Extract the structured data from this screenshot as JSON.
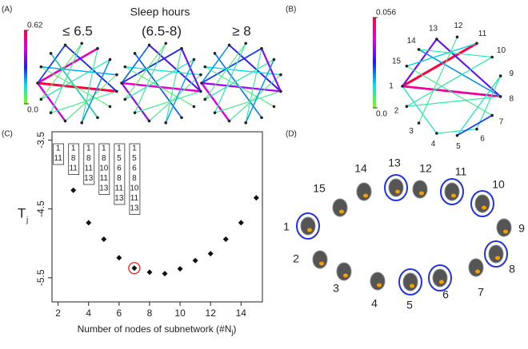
{
  "chart_data": [
    {
      "type": "network",
      "panel_label": "(A)",
      "title": "Sleep hours",
      "clim": [
        0,
        0.62
      ],
      "cticks": [
        {
          "value": 0,
          "label": "0.0"
        },
        0.62
      ],
      "panels": [
        {
          "title": "≤ 6.5",
          "edges": [
            [
              1,
              8,
              0.62
            ],
            [
              1,
              11,
              0.5
            ],
            [
              13,
              8,
              0.3
            ],
            [
              14,
              6,
              0.25
            ],
            [
              15,
              9,
              0.2
            ],
            [
              1,
              4,
              0.45
            ],
            [
              13,
              1,
              0.28
            ],
            [
              12,
              3,
              0.1
            ],
            [
              2,
              10,
              0.12
            ],
            [
              5,
              11,
              0.1
            ],
            [
              4,
              9,
              0.08
            ],
            [
              6,
              14,
              0.1
            ],
            [
              7,
              15,
              0.07
            ],
            [
              3,
              8,
              0.09
            ],
            [
              2,
              12,
              0.06
            ],
            [
              10,
              5,
              0.22
            ]
          ]
        },
        {
          "title": "(6.5-8)",
          "edges": [
            [
              1,
              8,
              0.48
            ],
            [
              1,
              11,
              0.3
            ],
            [
              13,
              8,
              0.35
            ],
            [
              14,
              6,
              0.26
            ],
            [
              15,
              9,
              0.15
            ],
            [
              1,
              4,
              0.4
            ],
            [
              13,
              1,
              0.25
            ],
            [
              12,
              3,
              0.1
            ],
            [
              2,
              10,
              0.12
            ],
            [
              5,
              11,
              0.1
            ],
            [
              4,
              9,
              0.08
            ],
            [
              11,
              8,
              0.38
            ],
            [
              7,
              15,
              0.07
            ],
            [
              3,
              8,
              0.09
            ],
            [
              2,
              12,
              0.06
            ],
            [
              10,
              5,
              0.2
            ]
          ]
        },
        {
          "title": "≥ 8",
          "edges": [
            [
              1,
              8,
              0.42
            ],
            [
              1,
              11,
              0.28
            ],
            [
              13,
              8,
              0.33
            ],
            [
              14,
              6,
              0.24
            ],
            [
              15,
              9,
              0.16
            ],
            [
              1,
              4,
              0.46
            ],
            [
              13,
              1,
              0.22
            ],
            [
              12,
              3,
              0.11
            ],
            [
              2,
              10,
              0.12
            ],
            [
              5,
              11,
              0.1
            ],
            [
              4,
              9,
              0.09
            ],
            [
              11,
              8,
              0.4
            ],
            [
              7,
              15,
              0.08
            ],
            [
              3,
              8,
              0.09
            ],
            [
              2,
              12,
              0.07
            ],
            [
              10,
              5,
              0.21
            ]
          ]
        }
      ]
    },
    {
      "type": "network",
      "panel_label": "(B)",
      "clim": [
        0,
        0.056
      ],
      "cticks": [
        {
          "value": 0,
          "label": "0.0"
        },
        0.056
      ],
      "node_labels": [
        "1",
        "2",
        "3",
        "4",
        "5",
        "6",
        "7",
        "8",
        "9",
        "10",
        "11",
        "12",
        "13",
        "14",
        "15"
      ],
      "panels": [
        {
          "edges": [
            [
              1,
              11,
              0.056
            ],
            [
              1,
              8,
              0.048
            ],
            [
              13,
              1,
              0.035
            ],
            [
              13,
              8,
              0.033
            ],
            [
              14,
              8,
              0.02
            ],
            [
              15,
              11,
              0.015
            ],
            [
              1,
              4,
              0.012
            ],
            [
              2,
              10,
              0.01
            ],
            [
              3,
              12,
              0.008
            ],
            [
              5,
              9,
              0.012
            ],
            [
              4,
              6,
              0.01
            ],
            [
              15,
              7,
              0.008
            ],
            [
              14,
              10,
              0.01
            ],
            [
              2,
              8,
              0.01
            ],
            [
              6,
              9,
              0.01
            ],
            [
              5,
              7,
              0.025
            ]
          ]
        }
      ]
    },
    {
      "type": "scatter",
      "panel_label": "(C)",
      "y_label": "T",
      "y_label_sub": "j",
      "x_label": "Number of nodes of subnetwork (#N",
      "x_label_sub": "j",
      "x_label_end": ")",
      "x": [
        2,
        3,
        4,
        5,
        6,
        7,
        8,
        9,
        10,
        11,
        12,
        13,
        14,
        15
      ],
      "values": [
        -3.59,
        -4.23,
        -4.7,
        -4.94,
        -5.21,
        -5.36,
        -5.42,
        -5.44,
        -5.37,
        -5.25,
        -5.15,
        -4.94,
        -4.7,
        -4.34
      ],
      "xlim": [
        1.6,
        15.4
      ],
      "ylim": [
        -5.85,
        -3.38
      ],
      "xticks": [
        2,
        4,
        6,
        8,
        10,
        12,
        14
      ],
      "yticks": [
        -3.5,
        -4.5,
        -5.5
      ],
      "highlight": 7,
      "subnetworks": [
        {
          "x": 2,
          "nodes": [
            "1",
            "11"
          ]
        },
        {
          "x": 3,
          "nodes": [
            "1",
            "8",
            "11"
          ]
        },
        {
          "x": 4,
          "nodes": [
            "1",
            "8",
            "11",
            "13"
          ]
        },
        {
          "x": 5,
          "nodes": [
            "1",
            "8",
            "10",
            "11",
            "13"
          ]
        },
        {
          "x": 6,
          "nodes": [
            "1",
            "5",
            "6",
            "8",
            "11",
            "13"
          ]
        },
        {
          "x": 7,
          "nodes": [
            "1",
            "5",
            "6",
            "8",
            "10",
            "11",
            "13"
          ]
        }
      ]
    },
    {
      "type": "brain-map",
      "panel_label": "(D)",
      "node_labels": [
        "1",
        "2",
        "3",
        "4",
        "5",
        "6",
        "7",
        "8",
        "9",
        "10",
        "11",
        "12",
        "13",
        "14",
        "15"
      ],
      "highlighted": [
        1,
        5,
        6,
        8,
        10,
        11,
        13
      ]
    }
  ]
}
